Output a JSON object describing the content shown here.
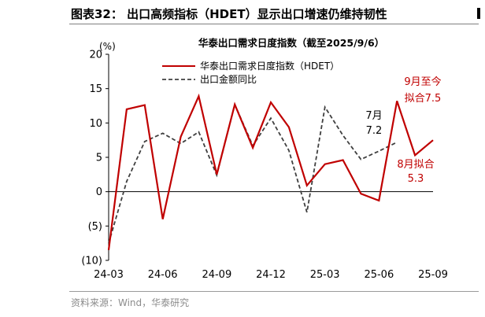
{
  "figure": {
    "title": "图表32：  出口高频指标（HDET）显示出口增速仍维持韧性",
    "source": "资料来源：Wind，华泰研究"
  },
  "chart_data": {
    "type": "line",
    "title": "华泰出口需求日度指数（截至2025/9/6）",
    "ylabel": "(%)",
    "ylim": [
      -10,
      20
    ],
    "yticks": [
      -10,
      -5,
      0,
      5,
      10,
      15,
      20
    ],
    "ytick_labels": [
      "(10)",
      "(5)",
      "0",
      "5",
      "10",
      "15",
      "20"
    ],
    "xlim": [
      0,
      18
    ],
    "xticks": [
      0,
      3,
      6,
      9,
      12,
      15,
      18
    ],
    "xtick_labels": [
      "24-03",
      "24-06",
      "24-09",
      "24-12",
      "25-03",
      "25-06",
      "25-09"
    ],
    "legend_position": "top-left",
    "series": [
      {
        "name": "华泰出口需求日度指数（HDET）",
        "color": "#c00000",
        "style": "solid",
        "x": [
          0,
          1,
          2,
          3,
          4,
          5,
          6,
          7,
          8,
          9,
          10,
          11,
          12,
          13,
          14,
          15,
          16,
          17,
          18
        ],
        "y": [
          -8.5,
          12.0,
          12.6,
          -4.0,
          8.0,
          13.9,
          2.5,
          12.7,
          6.4,
          13.0,
          9.4,
          0.9,
          4.0,
          4.6,
          -0.3,
          -1.3,
          13.2,
          5.3,
          7.5
        ]
      },
      {
        "name": "出口金额同比",
        "color": "#404040",
        "style": "dashed",
        "x": [
          0,
          1,
          2,
          3,
          4,
          5,
          6,
          7,
          8,
          9,
          10,
          11,
          12,
          13,
          14,
          15,
          16
        ],
        "y": [
          -7.5,
          1.5,
          7.3,
          8.5,
          7.0,
          8.7,
          2.4,
          12.7,
          6.7,
          10.7,
          6.0,
          -3.0,
          12.3,
          8.2,
          4.7,
          5.9,
          7.2
        ]
      }
    ],
    "annotations": [
      {
        "line1": "7月",
        "line2": "7.2",
        "color": "#000000"
      },
      {
        "line1": "9月至今",
        "line2": "拟合7.5",
        "color": "#c00000"
      },
      {
        "line1": "8月拟合",
        "line2": "5.3",
        "color": "#c00000"
      }
    ]
  }
}
